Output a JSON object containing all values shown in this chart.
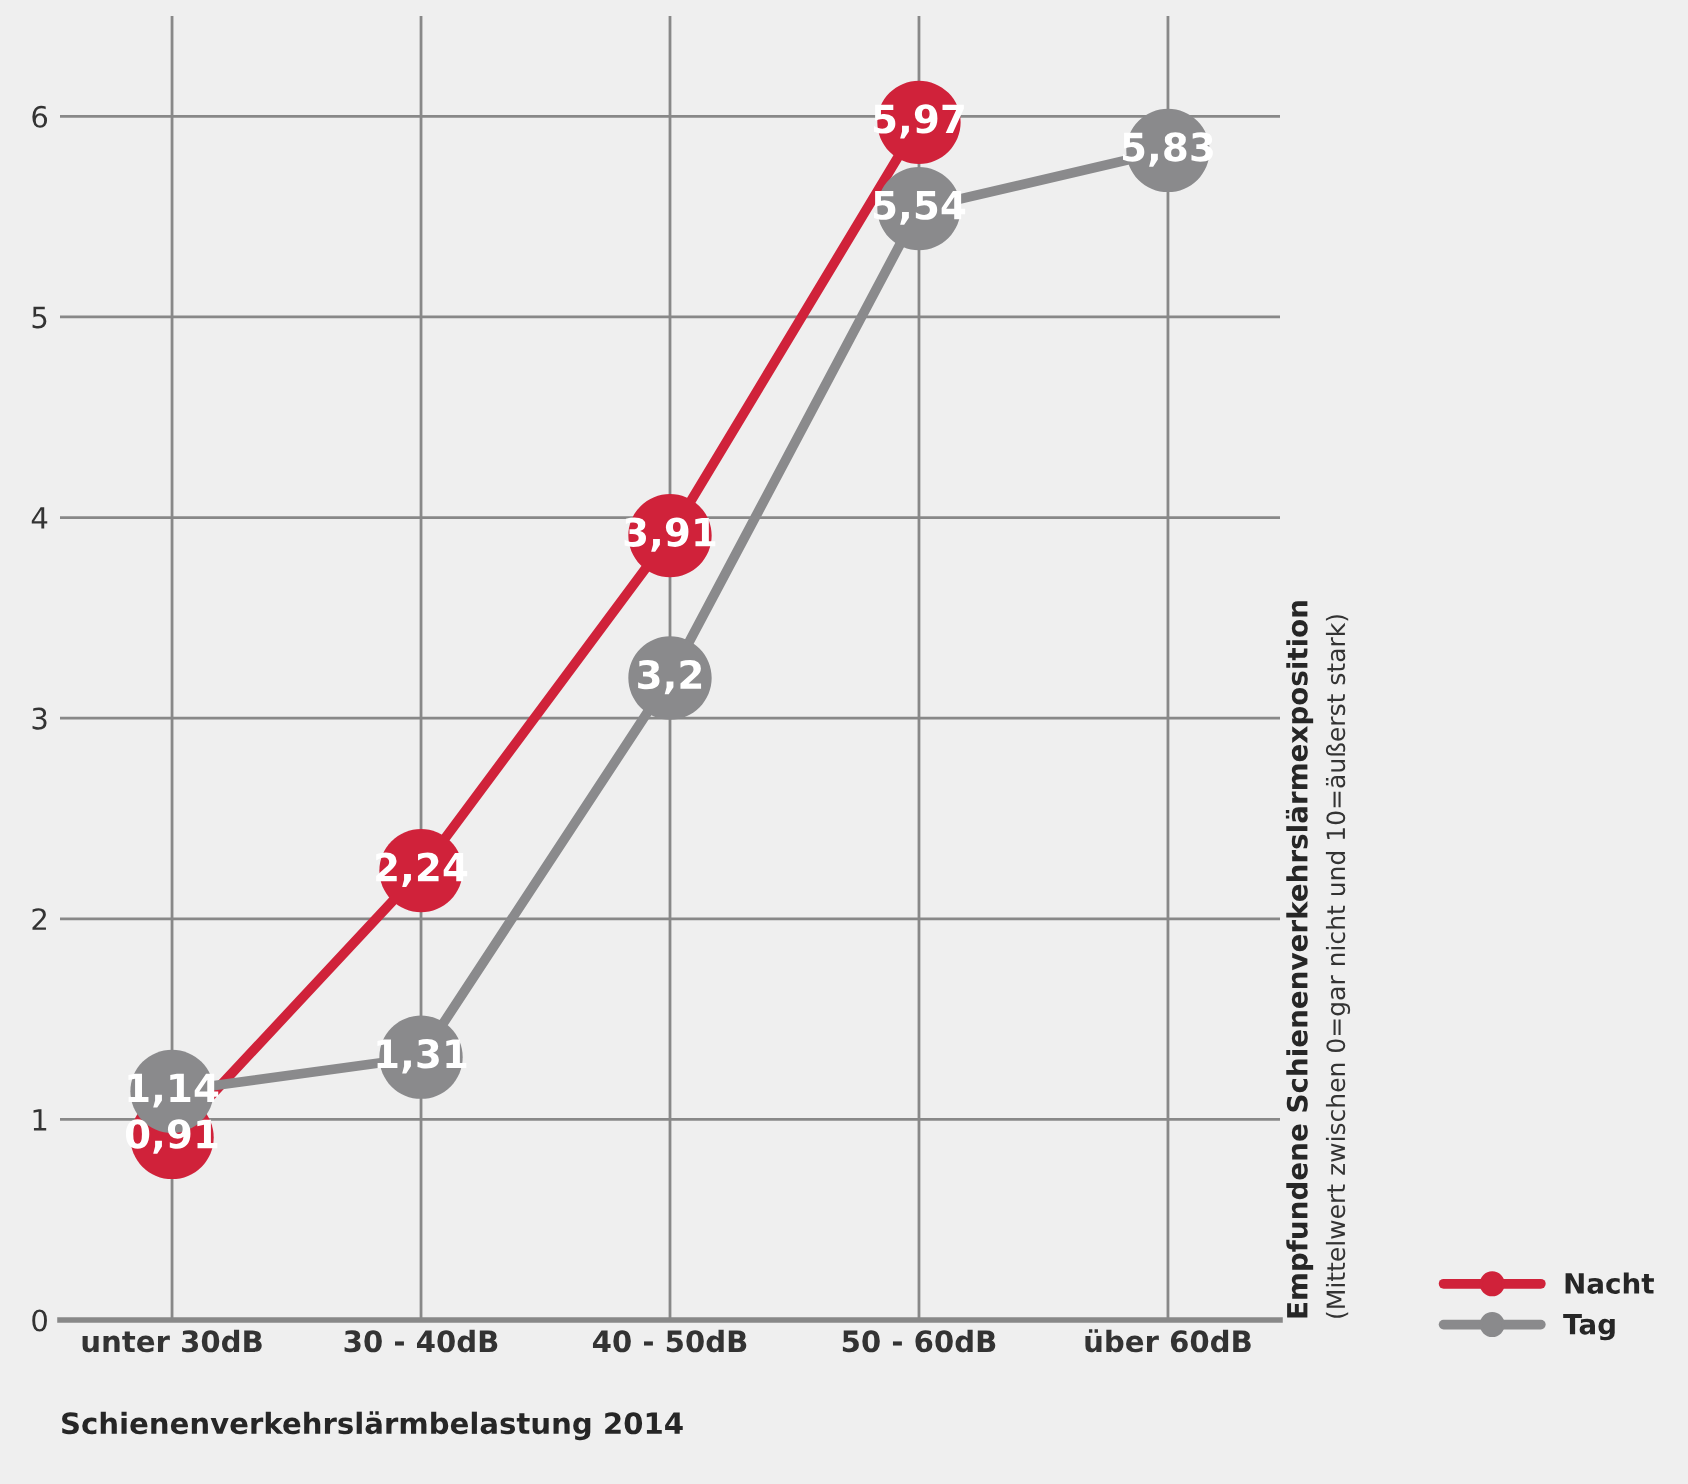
{
  "chart_data": {
    "type": "line",
    "categories": [
      "unter 30dB",
      "30 - 40dB",
      "40 - 50dB",
      "50 - 60dB",
      "über 60dB"
    ],
    "series": [
      {
        "name": "Nacht",
        "color": "#d0223a",
        "values": [
          0.91,
          2.24,
          3.91,
          5.97,
          null
        ],
        "value_labels": [
          "0,91",
          "2,24",
          "3,91",
          "5,97",
          null
        ]
      },
      {
        "name": "Tag",
        "color": "#8a8a8c",
        "values": [
          1.14,
          1.31,
          3.2,
          5.54,
          5.83
        ],
        "value_labels": [
          "1,14",
          "1,31",
          "3,2",
          "5,54",
          "5,83"
        ]
      }
    ],
    "xlabel": "Schienenverkehrslärmbelastung 2014",
    "ylabel": "Empfundene Schienenverkehrslärmexposition",
    "annotations": [
      "(Mittelwert zwischen 0=gar nicht und 10=äußerst stark)"
    ],
    "ylim": [
      0,
      6.5
    ],
    "yticks": [
      0,
      1,
      2,
      3,
      4,
      5,
      6
    ],
    "grid": true,
    "legend": "bottom right",
    "marker": "circle",
    "line_style": "solid"
  }
}
